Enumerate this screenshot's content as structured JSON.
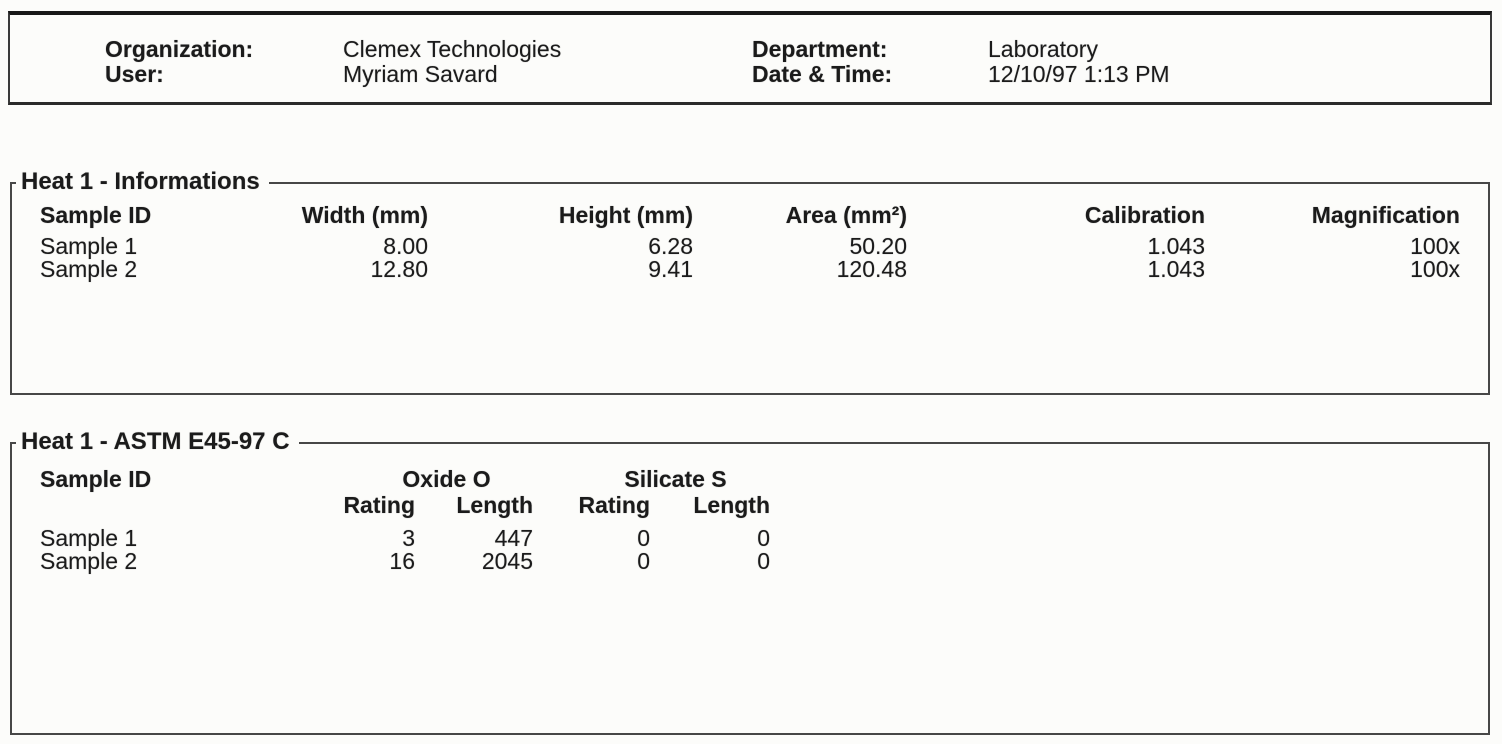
{
  "header": {
    "fields": [
      {
        "label": "Organization:",
        "value": "Clemex Technologies"
      },
      {
        "label": "User:",
        "value": "Myriam Savard"
      },
      {
        "label": "Department:",
        "value": "Laboratory"
      },
      {
        "label": "Date & Time:",
        "value": "12/10/97 1:13 PM"
      }
    ]
  },
  "sections": [
    {
      "title": "Heat 1 - Informations",
      "columns": [
        "Sample ID",
        "Width (mm)",
        "Height (mm)",
        "Area (mm²)",
        "Calibration",
        "Magnification"
      ],
      "rows": [
        [
          "Sample 1",
          "8.00",
          "6.28",
          "50.20",
          "1.043",
          "100x"
        ],
        [
          "Sample 2",
          "12.80",
          "9.41",
          "120.48",
          "1.043",
          "100x"
        ]
      ]
    },
    {
      "title": "Heat 1 - ASTM E45-97 C",
      "column_groups": [
        "Oxide O",
        "Silicate S"
      ],
      "columns": [
        "Sample ID",
        "Rating",
        "Length",
        "Rating",
        "Length"
      ],
      "rows": [
        [
          "Sample 1",
          "3",
          "447",
          "0",
          "0"
        ],
        [
          "Sample 2",
          "16",
          "2045",
          "0",
          "0"
        ]
      ]
    }
  ]
}
